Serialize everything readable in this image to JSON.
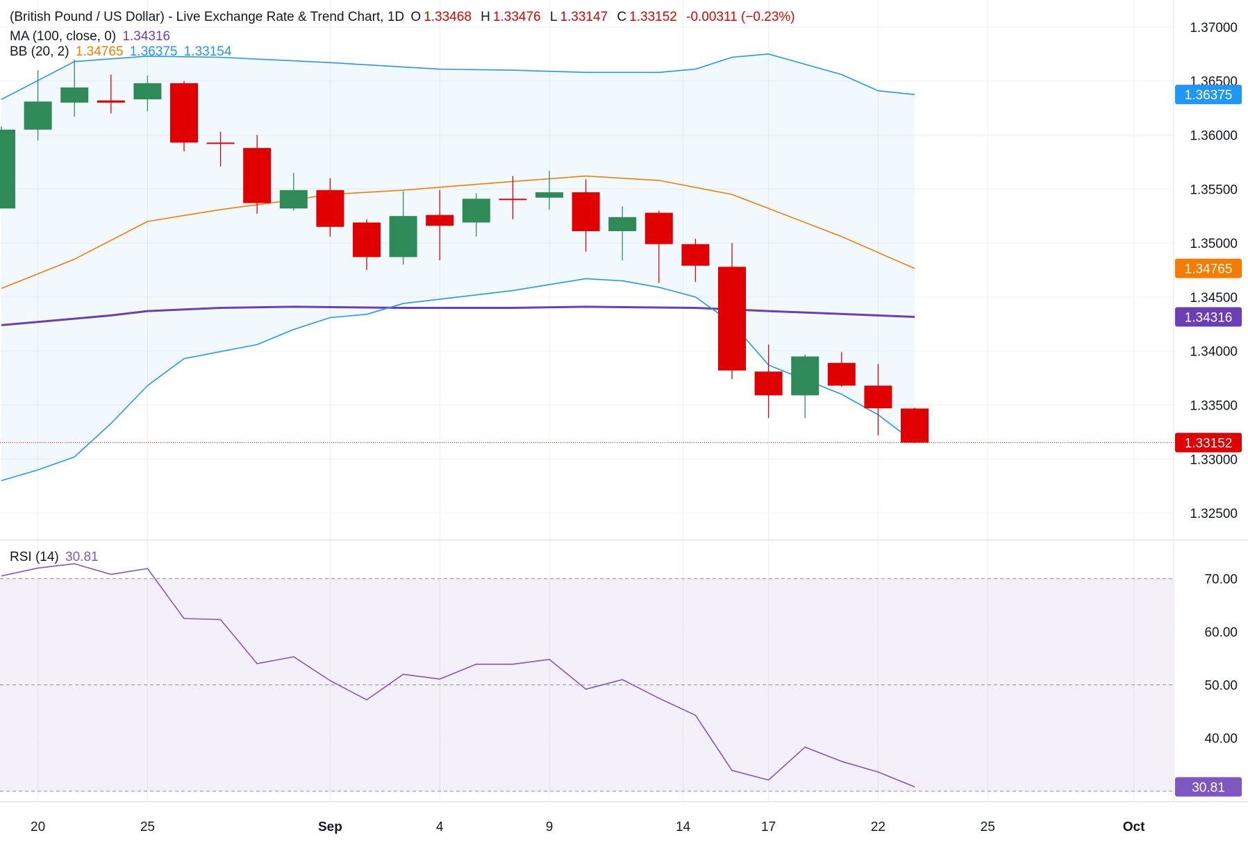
{
  "header": {
    "title": "(British Pound / US Dollar) - Live Exchange Rate & Trend Chart, 1D",
    "ohlc": [
      {
        "k": "O",
        "v": "1.33468"
      },
      {
        "k": "H",
        "v": "1.33476"
      },
      {
        "k": "L",
        "v": "1.33147"
      },
      {
        "k": "C",
        "v": "1.33152"
      }
    ],
    "change": "-0.00311 (−0.23%)"
  },
  "ma_legend": {
    "label": "MA (100, close, 0)",
    "value": "1.34316"
  },
  "bb_legend": {
    "label": "BB (20, 2)",
    "basis": "1.34765",
    "upper": "1.36375",
    "lower": "1.33154"
  },
  "rsi_legend": {
    "label": "RSI (14)",
    "value": "30.81"
  },
  "colors": {
    "up": "#2e8b57",
    "down": "#e00000",
    "ma": "#6a3fb5",
    "bb_basis": "#f57c00",
    "bb_band": "#2196f3",
    "rsi": "#7e57c2",
    "grid": "#eef0f3"
  },
  "chart_data": [
    {
      "type": "candlestick",
      "title": "(British Pound / US Dollar) - Live Exchange Rate & Trend Chart, 1D",
      "x_tick_labels": [
        "20",
        "25",
        "Sep",
        "4",
        "9",
        "14",
        "17",
        "22",
        "25",
        "Oct"
      ],
      "x_ticks_at": [
        "2025-08-20",
        "2025-08-25",
        "2025-09-01",
        "2025-09-04",
        "2025-09-09",
        "2025-09-14",
        "2025-09-17",
        "2025-09-22",
        "2025-09-25",
        "2025-10-01"
      ],
      "x_range": [
        "2025-08-19",
        "2025-10-03"
      ],
      "y_ticks": [
        "1.37000",
        "1.36500",
        "1.36000",
        "1.35500",
        "1.35000",
        "1.34500",
        "1.34000",
        "1.33500",
        "1.33000",
        "1.32500"
      ],
      "ylim": [
        1.3225,
        1.3725
      ],
      "grid": true,
      "candles": [
        {
          "date": "2025-08-19",
          "o": 1.3532,
          "h": 1.3608,
          "l": 1.3532,
          "c": 1.3605
        },
        {
          "date": "2025-08-20",
          "o": 1.3605,
          "h": 1.366,
          "l": 1.3595,
          "c": 1.3631
        },
        {
          "date": "2025-08-21",
          "o": 1.363,
          "h": 1.367,
          "l": 1.3617,
          "c": 1.3644
        },
        {
          "date": "2025-08-22",
          "o": 1.3632,
          "h": 1.3656,
          "l": 1.362,
          "c": 1.363
        },
        {
          "date": "2025-08-25",
          "o": 1.3633,
          "h": 1.3655,
          "l": 1.3622,
          "c": 1.3648
        },
        {
          "date": "2025-08-26",
          "o": 1.3648,
          "h": 1.365,
          "l": 1.3585,
          "c": 1.3593
        },
        {
          "date": "2025-08-27",
          "o": 1.3593,
          "h": 1.3603,
          "l": 1.3571,
          "c": 1.3592
        },
        {
          "date": "2025-08-28",
          "o": 1.3588,
          "h": 1.36,
          "l": 1.3527,
          "c": 1.3537
        },
        {
          "date": "2025-08-29",
          "o": 1.3532,
          "h": 1.3565,
          "l": 1.353,
          "c": 1.3549
        },
        {
          "date": "2025-09-01",
          "o": 1.3549,
          "h": 1.356,
          "l": 1.3506,
          "c": 1.3515
        },
        {
          "date": "2025-09-02",
          "o": 1.3519,
          "h": 1.3522,
          "l": 1.3475,
          "c": 1.3487
        },
        {
          "date": "2025-09-03",
          "o": 1.3487,
          "h": 1.3548,
          "l": 1.348,
          "c": 1.3525
        },
        {
          "date": "2025-09-04",
          "o": 1.3526,
          "h": 1.3549,
          "l": 1.3484,
          "c": 1.3516
        },
        {
          "date": "2025-09-05",
          "o": 1.3519,
          "h": 1.3546,
          "l": 1.3506,
          "c": 1.3541
        },
        {
          "date": "2025-09-08",
          "o": 1.3541,
          "h": 1.3562,
          "l": 1.3522,
          "c": 1.354
        },
        {
          "date": "2025-09-09",
          "o": 1.3542,
          "h": 1.3567,
          "l": 1.3531,
          "c": 1.3547
        },
        {
          "date": "2025-09-10",
          "o": 1.3547,
          "h": 1.3559,
          "l": 1.3492,
          "c": 1.3511
        },
        {
          "date": "2025-09-11",
          "o": 1.3511,
          "h": 1.3534,
          "l": 1.3484,
          "c": 1.3524
        },
        {
          "date": "2025-09-12",
          "o": 1.3528,
          "h": 1.353,
          "l": 1.3463,
          "c": 1.3499
        },
        {
          "date": "2025-09-15",
          "o": 1.3499,
          "h": 1.3504,
          "l": 1.3464,
          "c": 1.3479
        },
        {
          "date": "2025-09-16",
          "o": 1.3478,
          "h": 1.35,
          "l": 1.3374,
          "c": 1.3382
        },
        {
          "date": "2025-09-17",
          "o": 1.3381,
          "h": 1.3406,
          "l": 1.3338,
          "c": 1.3359
        },
        {
          "date": "2025-09-18",
          "o": 1.3359,
          "h": 1.3397,
          "l": 1.3338,
          "c": 1.3395
        },
        {
          "date": "2025-09-19",
          "o": 1.3389,
          "h": 1.3399,
          "l": 1.3367,
          "c": 1.3368
        },
        {
          "date": "2025-09-22",
          "o": 1.3368,
          "h": 1.3388,
          "l": 1.3322,
          "c": 1.3347
        },
        {
          "date": "2025-09-23",
          "o": 1.33468,
          "h": 1.33476,
          "l": 1.33147,
          "c": 1.33152
        }
      ],
      "series": [
        {
          "name": "MA (100, close, 0)",
          "points": [
            [
              "2025-08-19",
              1.3424
            ],
            [
              "2025-08-22",
              1.3433
            ],
            [
              "2025-08-25",
              1.3437
            ],
            [
              "2025-08-27",
              1.344
            ],
            [
              "2025-08-29",
              1.3441
            ],
            [
              "2025-09-03",
              1.344
            ],
            [
              "2025-09-08",
              1.344
            ],
            [
              "2025-09-10",
              1.3441
            ],
            [
              "2025-09-15",
              1.344
            ],
            [
              "2025-09-17",
              1.3437
            ],
            [
              "2025-09-22",
              1.3433
            ],
            [
              "2025-09-23",
              1.34316
            ]
          ]
        },
        {
          "name": "BB basis",
          "points": [
            [
              "2025-08-19",
              1.3458
            ],
            [
              "2025-08-21",
              1.3485
            ],
            [
              "2025-08-25",
              1.352
            ],
            [
              "2025-08-27",
              1.3531
            ],
            [
              "2025-08-29",
              1.354
            ],
            [
              "2025-09-01",
              1.3545
            ],
            [
              "2025-09-03",
              1.3549
            ],
            [
              "2025-09-08",
              1.3557
            ],
            [
              "2025-09-10",
              1.3562
            ],
            [
              "2025-09-12",
              1.3558
            ],
            [
              "2025-09-16",
              1.3545
            ],
            [
              "2025-09-17",
              1.3532
            ],
            [
              "2025-09-19",
              1.3506
            ],
            [
              "2025-09-23",
              1.34765
            ]
          ]
        },
        {
          "name": "BB upper",
          "points": [
            [
              "2025-08-19",
              1.3633
            ],
            [
              "2025-08-21",
              1.3668
            ],
            [
              "2025-08-25",
              1.3673
            ],
            [
              "2025-08-27",
              1.3672
            ],
            [
              "2025-09-01",
              1.3667
            ],
            [
              "2025-09-04",
              1.3661
            ],
            [
              "2025-09-08",
              1.366
            ],
            [
              "2025-09-10",
              1.3658
            ],
            [
              "2025-09-12",
              1.3658
            ],
            [
              "2025-09-15",
              1.3661
            ],
            [
              "2025-09-16",
              1.3672
            ],
            [
              "2025-09-17",
              1.3675
            ],
            [
              "2025-09-19",
              1.3656
            ],
            [
              "2025-09-22",
              1.3641
            ],
            [
              "2025-09-23",
              1.36375
            ]
          ]
        },
        {
          "name": "BB lower",
          "points": [
            [
              "2025-08-19",
              1.328
            ],
            [
              "2025-08-20",
              1.329
            ],
            [
              "2025-08-21",
              1.3302
            ],
            [
              "2025-08-22",
              1.3333
            ],
            [
              "2025-08-25",
              1.3368
            ],
            [
              "2025-08-26",
              1.3393
            ],
            [
              "2025-08-28",
              1.3406
            ],
            [
              "2025-08-29",
              1.342
            ],
            [
              "2025-09-01",
              1.3431
            ],
            [
              "2025-09-02",
              1.3434
            ],
            [
              "2025-09-03",
              1.3444
            ],
            [
              "2025-09-08",
              1.3456
            ],
            [
              "2025-09-10",
              1.3467
            ],
            [
              "2025-09-11",
              1.3465
            ],
            [
              "2025-09-12",
              1.3459
            ],
            [
              "2025-09-15",
              1.345
            ],
            [
              "2025-09-16",
              1.3426
            ],
            [
              "2025-09-17",
              1.3387
            ],
            [
              "2025-09-19",
              1.336
            ],
            [
              "2025-09-22",
              1.3341
            ],
            [
              "2025-09-23",
              1.33154
            ]
          ]
        }
      ],
      "last_close": 1.33152,
      "price_labels": [
        {
          "value": "1.36375",
          "color": "#2196f3",
          "at": 1.36375
        },
        {
          "value": "1.34765",
          "color": "#f57c00",
          "at": 1.34765
        },
        {
          "value": "1.34316",
          "color": "#6a3fb5",
          "at": 1.34316
        },
        {
          "value": "1.33154",
          "color": "#2196f3",
          "at": 1.33154
        },
        {
          "value": "1.33152",
          "color": "#e00000",
          "at": 1.33152
        }
      ]
    },
    {
      "type": "line",
      "title": "RSI (14)",
      "y_ticks": [
        "70.00",
        "60.00",
        "50.00",
        "40.00",
        "30.81"
      ],
      "ylim": [
        28,
        77
      ],
      "band": [
        30,
        70
      ],
      "series": [
        {
          "name": "RSI (14)",
          "points": [
            [
              "2025-08-19",
              70.5
            ],
            [
              "2025-08-20",
              72.0
            ],
            [
              "2025-08-21",
              72.8
            ],
            [
              "2025-08-22",
              70.8
            ],
            [
              "2025-08-25",
              71.9
            ],
            [
              "2025-08-26",
              62.5
            ],
            [
              "2025-08-27",
              62.3
            ],
            [
              "2025-08-28",
              54.0
            ],
            [
              "2025-08-29",
              55.3
            ],
            [
              "2025-09-01",
              50.8
            ],
            [
              "2025-09-02",
              47.2
            ],
            [
              "2025-09-03",
              52.0
            ],
            [
              "2025-09-04",
              51.1
            ],
            [
              "2025-09-05",
              53.9
            ],
            [
              "2025-09-08",
              53.9
            ],
            [
              "2025-09-09",
              54.8
            ],
            [
              "2025-09-10",
              49.2
            ],
            [
              "2025-09-11",
              51.0
            ],
            [
              "2025-09-12",
              47.5
            ],
            [
              "2025-09-15",
              44.3
            ],
            [
              "2025-09-16",
              33.9
            ],
            [
              "2025-09-17",
              32.1
            ],
            [
              "2025-09-18",
              38.3
            ],
            [
              "2025-09-19",
              35.6
            ],
            [
              "2025-09-22",
              33.6
            ],
            [
              "2025-09-23",
              30.81
            ]
          ]
        }
      ],
      "last_value": "30.81"
    }
  ]
}
